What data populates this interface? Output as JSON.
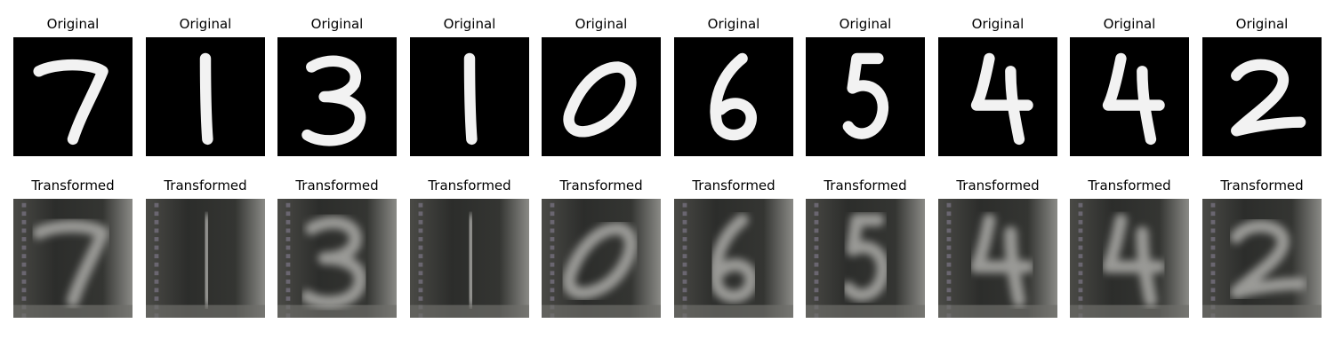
{
  "rows": [
    {
      "title": "Original",
      "images": [
        {
          "digit": "7",
          "style": "mnist"
        },
        {
          "digit": "1",
          "style": "mnist"
        },
        {
          "digit": "3",
          "style": "mnist"
        },
        {
          "digit": "1",
          "style": "mnist"
        },
        {
          "digit": "0",
          "style": "mnist"
        },
        {
          "digit": "6",
          "style": "mnist"
        },
        {
          "digit": "5",
          "style": "mnist"
        },
        {
          "digit": "4",
          "style": "mnist"
        },
        {
          "digit": "4",
          "style": "mnist"
        },
        {
          "digit": "2",
          "style": "mnist"
        }
      ]
    },
    {
      "title": "Transformed",
      "images": [
        {
          "digit": "7",
          "style": "svhn-like"
        },
        {
          "digit": "1",
          "style": "svhn-like"
        },
        {
          "digit": "3",
          "style": "svhn-like"
        },
        {
          "digit": "1",
          "style": "svhn-like"
        },
        {
          "digit": "0",
          "style": "svhn-like"
        },
        {
          "digit": "6",
          "style": "svhn-like"
        },
        {
          "digit": "5",
          "style": "svhn-like"
        },
        {
          "digit": "4",
          "style": "svhn-like"
        },
        {
          "digit": "4",
          "style": "svhn-like"
        },
        {
          "digit": "2",
          "style": "svhn-like"
        }
      ]
    }
  ],
  "colors": {
    "mnist_bg": "#000000",
    "mnist_stroke": "#f2f2f2",
    "transformed_bg": "#2f302e",
    "transformed_stroke": "#9a9a96"
  }
}
